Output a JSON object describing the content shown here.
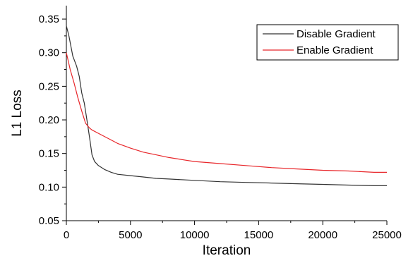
{
  "chart_data": {
    "type": "line",
    "title": "",
    "xlabel": "Iteration",
    "ylabel": "L1 Loss",
    "xlim": [
      0,
      25000
    ],
    "ylim": [
      0.05,
      0.37
    ],
    "x_ticks": [
      0,
      5000,
      10000,
      15000,
      20000,
      25000
    ],
    "x_tick_labels": [
      "0",
      "5000",
      "10000",
      "15000",
      "20000",
      "25000"
    ],
    "y_ticks": [
      0.05,
      0.1,
      0.15,
      0.2,
      0.25,
      0.3,
      0.35
    ],
    "y_tick_labels": [
      "0.05",
      "0.10",
      "0.15",
      "0.20",
      "0.25",
      "0.30",
      "0.35"
    ],
    "grid": false,
    "legend_position": "top-right",
    "series": [
      {
        "name": "Disable Gradient",
        "color": "#333333",
        "x": [
          0,
          200,
          500,
          800,
          1000,
          1200,
          1400,
          1600,
          1800,
          2000,
          2200,
          2500,
          3000,
          3500,
          4000,
          5000,
          6000,
          7000,
          8000,
          10000,
          12000,
          14000,
          16000,
          18000,
          20000,
          22000,
          24000,
          25000
        ],
        "y": [
          0.34,
          0.325,
          0.295,
          0.28,
          0.265,
          0.24,
          0.225,
          0.2,
          0.175,
          0.148,
          0.138,
          0.132,
          0.126,
          0.122,
          0.119,
          0.117,
          0.115,
          0.113,
          0.112,
          0.11,
          0.108,
          0.107,
          0.106,
          0.105,
          0.104,
          0.103,
          0.102,
          0.102
        ]
      },
      {
        "name": "Enable Gradient",
        "color": "#e8262a",
        "x": [
          0,
          300,
          600,
          900,
          1200,
          1500,
          1800,
          2000,
          2500,
          3000,
          3500,
          4000,
          5000,
          6000,
          7000,
          8000,
          9000,
          10000,
          12000,
          14000,
          16000,
          18000,
          20000,
          22000,
          24000,
          25000
        ],
        "y": [
          0.3,
          0.275,
          0.255,
          0.233,
          0.213,
          0.195,
          0.188,
          0.185,
          0.18,
          0.175,
          0.17,
          0.165,
          0.158,
          0.152,
          0.148,
          0.144,
          0.141,
          0.138,
          0.135,
          0.132,
          0.129,
          0.127,
          0.125,
          0.124,
          0.122,
          0.122
        ]
      }
    ]
  }
}
